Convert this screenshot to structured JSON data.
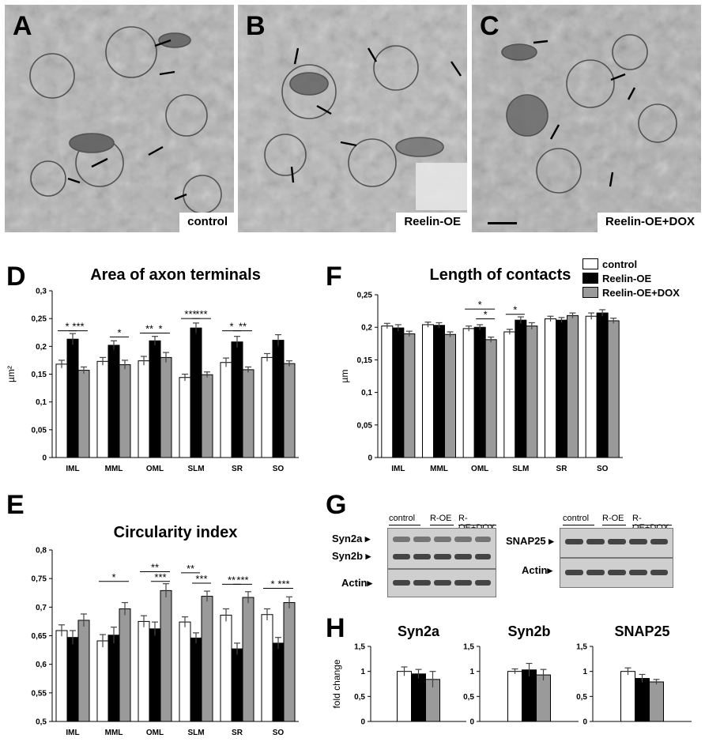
{
  "colors": {
    "control": "#ffffff",
    "reelin_oe": "#000000",
    "reelin_oe_dox": "#9a9a9a",
    "em_bg": "#a9a9a9"
  },
  "panels": {
    "A": {
      "letter": "A",
      "caption": "control"
    },
    "B": {
      "letter": "B",
      "caption": "Reelin-OE"
    },
    "C": {
      "letter": "C",
      "caption": "Reelin-OE+DOX"
    },
    "D": {
      "letter": "D"
    },
    "E": {
      "letter": "E"
    },
    "F": {
      "letter": "F"
    },
    "G": {
      "letter": "G"
    },
    "H": {
      "letter": "H"
    }
  },
  "legend": {
    "items": [
      "control",
      "Reelin-OE",
      "Reelin-OE+DOX"
    ]
  },
  "chart_data": [
    {
      "id": "D",
      "type": "bar",
      "title": "Area of axon terminals",
      "ylabel": "µm²",
      "ylim": [
        0,
        0.3
      ],
      "yticks": [
        "0",
        "0,05",
        "0,1",
        "0,15",
        "0,2",
        "0,25",
        "0,3"
      ],
      "categories": [
        "IML",
        "MML",
        "OML",
        "SLM",
        "SR",
        "SO"
      ],
      "series": [
        {
          "name": "control",
          "values": [
            0.168,
            0.173,
            0.174,
            0.144,
            0.171,
            0.18
          ],
          "errors": [
            0.007,
            0.007,
            0.008,
            0.006,
            0.008,
            0.007
          ]
        },
        {
          "name": "Reelin-OE",
          "values": [
            0.213,
            0.202,
            0.21,
            0.233,
            0.208,
            0.211
          ],
          "errors": [
            0.01,
            0.008,
            0.008,
            0.009,
            0.01,
            0.01
          ]
        },
        {
          "name": "Reelin-OE+DOX",
          "values": [
            0.157,
            0.167,
            0.18,
            0.149,
            0.158,
            0.169
          ],
          "errors": [
            0.006,
            0.008,
            0.009,
            0.005,
            0.005,
            0.005
          ]
        }
      ],
      "annotations": [
        {
          "cat": 0,
          "from": 0,
          "to": 1,
          "text": "*",
          "y": 0.228
        },
        {
          "cat": 0,
          "from": 1,
          "to": 2,
          "text": "***",
          "y": 0.228
        },
        {
          "cat": 1,
          "from": 1,
          "to": 2,
          "text": "*",
          "y": 0.217
        },
        {
          "cat": 2,
          "from": 0,
          "to": 1,
          "text": "**",
          "y": 0.224
        },
        {
          "cat": 2,
          "from": 1,
          "to": 2,
          "text": "*",
          "y": 0.224
        },
        {
          "cat": 3,
          "from": 0,
          "to": 1,
          "text": "***",
          "y": 0.25
        },
        {
          "cat": 3,
          "from": 1,
          "to": 2,
          "text": "***",
          "y": 0.25
        },
        {
          "cat": 4,
          "from": 0,
          "to": 1,
          "text": "*",
          "y": 0.228
        },
        {
          "cat": 4,
          "from": 1,
          "to": 2,
          "text": "**",
          "y": 0.228
        }
      ]
    },
    {
      "id": "F",
      "type": "bar",
      "title": "Length of contacts",
      "ylabel": "µm",
      "ylim": [
        0,
        0.25
      ],
      "yticks": [
        "0",
        "0,05",
        "0,1",
        "0,15",
        "0,2",
        "0,25"
      ],
      "categories": [
        "IML",
        "MML",
        "OML",
        "SLM",
        "SR",
        "SO"
      ],
      "series": [
        {
          "name": "control",
          "values": [
            0.202,
            0.204,
            0.198,
            0.193,
            0.213,
            0.217
          ],
          "errors": [
            0.004,
            0.004,
            0.004,
            0.004,
            0.004,
            0.005
          ]
        },
        {
          "name": "Reelin-OE",
          "values": [
            0.199,
            0.203,
            0.2,
            0.211,
            0.211,
            0.222
          ],
          "errors": [
            0.005,
            0.004,
            0.004,
            0.005,
            0.004,
            0.005
          ]
        },
        {
          "name": "Reelin-OE+DOX",
          "values": [
            0.19,
            0.189,
            0.181,
            0.202,
            0.218,
            0.21
          ],
          "errors": [
            0.004,
            0.004,
            0.004,
            0.005,
            0.004,
            0.004
          ]
        }
      ],
      "annotations": [
        {
          "cat": 2,
          "from": 0,
          "to": 2,
          "text": "*",
          "y": 0.228
        },
        {
          "cat": 2,
          "from": 1,
          "to": 2,
          "text": "*",
          "y": 0.213
        },
        {
          "cat": 3,
          "from": 0,
          "to": 1,
          "text": "*",
          "y": 0.22
        }
      ]
    },
    {
      "id": "E",
      "type": "bar",
      "title": "Circularity index",
      "ylabel": "",
      "ylim": [
        0.5,
        0.8
      ],
      "yticks": [
        "0,5",
        "0,55",
        "0,6",
        "0,65",
        "0,7",
        "0,75",
        "0,8"
      ],
      "categories": [
        "IML",
        "MML",
        "OML",
        "SLM",
        "SR",
        "SO"
      ],
      "series": [
        {
          "name": "control",
          "values": [
            0.659,
            0.641,
            0.675,
            0.674,
            0.686,
            0.687
          ],
          "errors": [
            0.01,
            0.011,
            0.01,
            0.009,
            0.011,
            0.01
          ]
        },
        {
          "name": "Reelin-OE",
          "values": [
            0.647,
            0.651,
            0.662,
            0.646,
            0.627,
            0.637
          ],
          "errors": [
            0.012,
            0.014,
            0.012,
            0.009,
            0.01,
            0.01
          ]
        },
        {
          "name": "Reelin-OE+DOX",
          "values": [
            0.677,
            0.697,
            0.729,
            0.719,
            0.717,
            0.708
          ],
          "errors": [
            0.011,
            0.011,
            0.012,
            0.009,
            0.01,
            0.01
          ]
        }
      ],
      "annotations": [
        {
          "cat": 1,
          "from": 0,
          "to": 2,
          "text": "*",
          "y": 0.745
        },
        {
          "cat": 2,
          "from": 0,
          "to": 2,
          "text": "**",
          "y": 0.762
        },
        {
          "cat": 2,
          "from": 1,
          "to": 2,
          "text": "***",
          "y": 0.745
        },
        {
          "cat": 3,
          "from": 0,
          "to": 1,
          "text": "**",
          "y": 0.76
        },
        {
          "cat": 3,
          "from": 1,
          "to": 2,
          "text": "***",
          "y": 0.742
        },
        {
          "cat": 4,
          "from": 0,
          "to": 1,
          "text": "**",
          "y": 0.74
        },
        {
          "cat": 4,
          "from": 1,
          "to": 2,
          "text": "***",
          "y": 0.74
        },
        {
          "cat": 5,
          "from": 0,
          "to": 1,
          "text": "*",
          "y": 0.733
        },
        {
          "cat": 5,
          "from": 1,
          "to": 2,
          "text": "***",
          "y": 0.733
        }
      ]
    },
    {
      "id": "H1",
      "type": "bar",
      "title": "Syn2a",
      "ylabel": "fold change",
      "ylim": [
        0,
        1.5
      ],
      "yticks": [
        "0",
        "0,5",
        "1",
        "1,5"
      ],
      "categories": [
        ""
      ],
      "series": [
        {
          "name": "control",
          "values": [
            1.0
          ],
          "errors": [
            0.09
          ]
        },
        {
          "name": "Reelin-OE",
          "values": [
            0.95
          ],
          "errors": [
            0.09
          ]
        },
        {
          "name": "Reelin-OE+DOX",
          "values": [
            0.84
          ],
          "errors": [
            0.16
          ]
        }
      ],
      "annotations": []
    },
    {
      "id": "H2",
      "type": "bar",
      "title": "Syn2b",
      "ylabel": "",
      "ylim": [
        0,
        1.5
      ],
      "yticks": [
        "0",
        "0,5",
        "1",
        "1,5"
      ],
      "categories": [
        ""
      ],
      "series": [
        {
          "name": "control",
          "values": [
            1.0
          ],
          "errors": [
            0.05
          ]
        },
        {
          "name": "Reelin-OE",
          "values": [
            1.03
          ],
          "errors": [
            0.13
          ]
        },
        {
          "name": "Reelin-OE+DOX",
          "values": [
            0.93
          ],
          "errors": [
            0.11
          ]
        }
      ],
      "annotations": []
    },
    {
      "id": "H3",
      "type": "bar",
      "title": "SNAP25",
      "ylabel": "",
      "ylim": [
        0,
        1.5
      ],
      "yticks": [
        "0",
        "0,5",
        "1",
        "1,5"
      ],
      "categories": [
        ""
      ],
      "series": [
        {
          "name": "control",
          "values": [
            1.0
          ],
          "errors": [
            0.07
          ]
        },
        {
          "name": "Reelin-OE",
          "values": [
            0.86
          ],
          "errors": [
            0.08
          ]
        },
        {
          "name": "Reelin-OE+DOX",
          "values": [
            0.79
          ],
          "errors": [
            0.05
          ]
        }
      ],
      "annotations": []
    }
  ],
  "blots": {
    "left": {
      "headers": [
        "control",
        "R-OE",
        "R-OE+DOX"
      ],
      "labels": [
        "Syn2a",
        "Syn2b",
        "Actin"
      ]
    },
    "right": {
      "headers": [
        "control",
        "R-OE",
        "R-OE+DOX"
      ],
      "labels": [
        "SNAP25",
        "Actin"
      ]
    }
  }
}
